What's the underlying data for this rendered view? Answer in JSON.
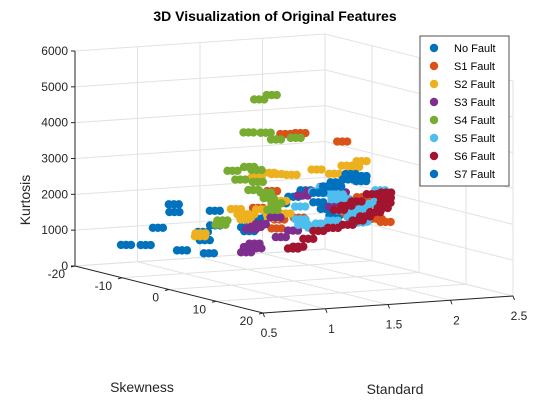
{
  "chart_data": {
    "type": "scatter",
    "title": "3D Visualization of Original Features",
    "xlabel": "Standard",
    "ylabel": "Skewness",
    "zlabel": "Kurtosis",
    "xlim": [
      0.5,
      2.5
    ],
    "ylim": [
      -20,
      20
    ],
    "zlim": [
      0,
      6000
    ],
    "x_ticks": [
      "0.5",
      "1",
      "1.5",
      "2",
      "2.5"
    ],
    "y_ticks": [
      "20",
      "10",
      "0",
      "-10",
      "-20"
    ],
    "z_ticks": [
      "0",
      "1000",
      "2000",
      "3000",
      "4000",
      "5000",
      "6000"
    ],
    "grid": true,
    "legend_position": "top-right",
    "series": [
      {
        "name": "No Fault",
        "color": "#0072BD",
        "points": [
          [
            0.72,
            -15,
            700
          ],
          [
            0.84,
            -14,
            700
          ],
          [
            0.98,
            -10,
            650
          ],
          [
            1.12,
            -8,
            600
          ],
          [
            1.2,
            -11,
            850
          ],
          [
            1.26,
            -13,
            1000
          ],
          [
            1.32,
            -12,
            1200
          ],
          [
            1.38,
            -7,
            1300
          ],
          [
            1.48,
            -9,
            1100
          ],
          [
            1.58,
            -10,
            1400
          ],
          [
            1.6,
            -8,
            1700
          ],
          [
            1.66,
            -7,
            1900
          ],
          [
            1.72,
            -6,
            2100
          ],
          [
            1.78,
            -5,
            2300
          ],
          [
            1.86,
            -7,
            2200
          ],
          [
            1.92,
            -6,
            1900
          ],
          [
            1.98,
            -6,
            1700
          ],
          [
            2.05,
            -6,
            1500
          ],
          [
            1.28,
            -11,
            1650
          ],
          [
            1.14,
            -16,
            1700
          ],
          [
            1.22,
            -18,
            1400
          ],
          [
            0.9,
            -13,
            1200
          ]
        ]
      },
      {
        "name": "S1 Fault",
        "color": "#D95319",
        "points": [
          [
            1.13,
            8,
            4450
          ],
          [
            1.25,
            8,
            4450
          ],
          [
            1.66,
            6,
            4050
          ],
          [
            1.72,
            6,
            2200
          ],
          [
            1.78,
            7,
            2500
          ],
          [
            1.86,
            5,
            2300
          ],
          [
            1.95,
            3,
            2100
          ],
          [
            2.05,
            3,
            1700
          ],
          [
            2.12,
            3,
            1600
          ],
          [
            1.5,
            1,
            1800
          ],
          [
            1.42,
            -1,
            1700
          ],
          [
            1.36,
            0,
            1500
          ],
          [
            1.88,
            1,
            1900
          ],
          [
            2.02,
            -2,
            1700
          ],
          [
            1.4,
            -5,
            1900
          ],
          [
            1.55,
            -6,
            2300
          ]
        ]
      },
      {
        "name": "S2 Fault",
        "color": "#EDB120",
        "points": [
          [
            0.9,
            8,
            3300
          ],
          [
            1.0,
            8,
            3400
          ],
          [
            1.06,
            8,
            3350
          ],
          [
            1.18,
            8,
            3300
          ],
          [
            1.38,
            8,
            3400
          ],
          [
            1.52,
            8,
            3250
          ],
          [
            1.62,
            8,
            3450
          ],
          [
            1.68,
            8,
            3400
          ],
          [
            1.74,
            8,
            3550
          ],
          [
            0.96,
            2,
            2200
          ],
          [
            1.05,
            1,
            2000
          ],
          [
            1.2,
            1,
            2100
          ],
          [
            1.36,
            1,
            2300
          ],
          [
            1.4,
            -2,
            1800
          ],
          [
            1.18,
            -1,
            1900
          ],
          [
            0.86,
            -3,
            1300
          ],
          [
            0.94,
            -5,
            1300
          ],
          [
            1.3,
            -5,
            1600
          ],
          [
            0.88,
            12,
            2300
          ],
          [
            0.98,
            12,
            2400
          ]
        ]
      },
      {
        "name": "S3 Fault",
        "color": "#7E2F8E",
        "points": [
          [
            0.78,
            10,
            1950
          ],
          [
            0.82,
            10,
            2000
          ],
          [
            1.38,
            -7,
            600
          ],
          [
            1.44,
            -8,
            700
          ],
          [
            1.5,
            -8,
            650
          ],
          [
            1.56,
            -10,
            700
          ],
          [
            1.62,
            -6,
            1000
          ],
          [
            1.68,
            -5,
            1200
          ],
          [
            1.72,
            -4,
            2200
          ],
          [
            1.8,
            -4,
            2300
          ],
          [
            1.9,
            -4,
            2400
          ],
          [
            1.95,
            -2,
            2300
          ],
          [
            1.88,
            0,
            2100
          ],
          [
            1.82,
            0,
            2000
          ],
          [
            1.46,
            -6,
            1400
          ],
          [
            1.54,
            -5,
            1600
          ]
        ]
      },
      {
        "name": "S4 Fault",
        "color": "#77AC30",
        "points": [
          [
            0.62,
            16,
            5800
          ],
          [
            0.72,
            16,
            5900
          ],
          [
            0.76,
            10,
            4650
          ],
          [
            0.86,
            11,
            4650
          ],
          [
            0.98,
            10,
            4400
          ],
          [
            1.1,
            11,
            4450
          ],
          [
            0.84,
            8,
            3600
          ],
          [
            0.9,
            8,
            3500
          ],
          [
            0.82,
            5,
            3400
          ],
          [
            0.92,
            4,
            3100
          ],
          [
            1.06,
            4,
            3000
          ],
          [
            1.1,
            2,
            2700
          ],
          [
            1.2,
            2,
            2600
          ],
          [
            1.26,
            1,
            2400
          ],
          [
            1.36,
            0,
            2200
          ],
          [
            1.04,
            -3,
            1700
          ],
          [
            1.1,
            -5,
            1500
          ],
          [
            1.44,
            -3,
            1900
          ]
        ]
      },
      {
        "name": "S5 Fault",
        "color": "#4DBEEE",
        "points": [
          [
            1.46,
            6,
            2700
          ],
          [
            1.52,
            6,
            2800
          ],
          [
            1.58,
            5,
            2600
          ],
          [
            1.64,
            4,
            2600
          ],
          [
            1.7,
            4,
            2500
          ],
          [
            1.78,
            2,
            2300
          ],
          [
            1.84,
            0,
            2200
          ],
          [
            1.9,
            -1,
            2200
          ],
          [
            1.98,
            -2,
            2100
          ],
          [
            2.04,
            -3,
            1900
          ],
          [
            2.1,
            -3,
            1700
          ],
          [
            2.12,
            -4,
            1500
          ],
          [
            2.16,
            -3,
            1400
          ],
          [
            2.2,
            -5,
            1300
          ],
          [
            2.0,
            -5,
            1400
          ],
          [
            1.94,
            -6,
            1300
          ],
          [
            1.88,
            -6,
            1200
          ],
          [
            1.8,
            -6,
            1300
          ],
          [
            1.74,
            -5,
            1500
          ],
          [
            1.7,
            -4,
            1900
          ],
          [
            1.96,
            -2,
            1800
          ],
          [
            2.02,
            0,
            1900
          ],
          [
            2.14,
            0,
            2000
          ],
          [
            2.26,
            -2,
            2100
          ],
          [
            2.34,
            -4,
            2200
          ]
        ]
      },
      {
        "name": "S6 Fault",
        "color": "#A2142F",
        "points": [
          [
            1.68,
            -5,
            700
          ],
          [
            1.76,
            -6,
            700
          ],
          [
            1.84,
            -6,
            900
          ],
          [
            1.92,
            -6,
            1100
          ],
          [
            2.0,
            -5,
            1200
          ],
          [
            2.08,
            -4,
            1300
          ],
          [
            2.16,
            -4,
            1400
          ],
          [
            2.22,
            -4,
            1500
          ],
          [
            2.3,
            -4,
            1600
          ],
          [
            2.36,
            -4,
            1700
          ],
          [
            2.42,
            -5,
            1800
          ],
          [
            2.46,
            -6,
            1900
          ],
          [
            2.5,
            -7,
            2000
          ],
          [
            2.46,
            -9,
            1900
          ],
          [
            1.86,
            0,
            1900
          ],
          [
            1.92,
            0,
            2000
          ],
          [
            2.0,
            0,
            2100
          ]
        ]
      },
      {
        "name": "S7 Fault",
        "color": "#0072BD",
        "points": [
          [
            1.66,
            3,
            2700
          ],
          [
            1.72,
            3,
            2800
          ],
          [
            1.78,
            4,
            2900
          ],
          [
            1.84,
            3,
            3000
          ],
          [
            1.9,
            3,
            2900
          ],
          [
            1.96,
            2,
            2800
          ],
          [
            2.0,
            1,
            2700
          ],
          [
            2.04,
            0,
            2800
          ],
          [
            1.8,
            1,
            2600
          ],
          [
            1.62,
            2,
            2500
          ]
        ]
      }
    ]
  }
}
